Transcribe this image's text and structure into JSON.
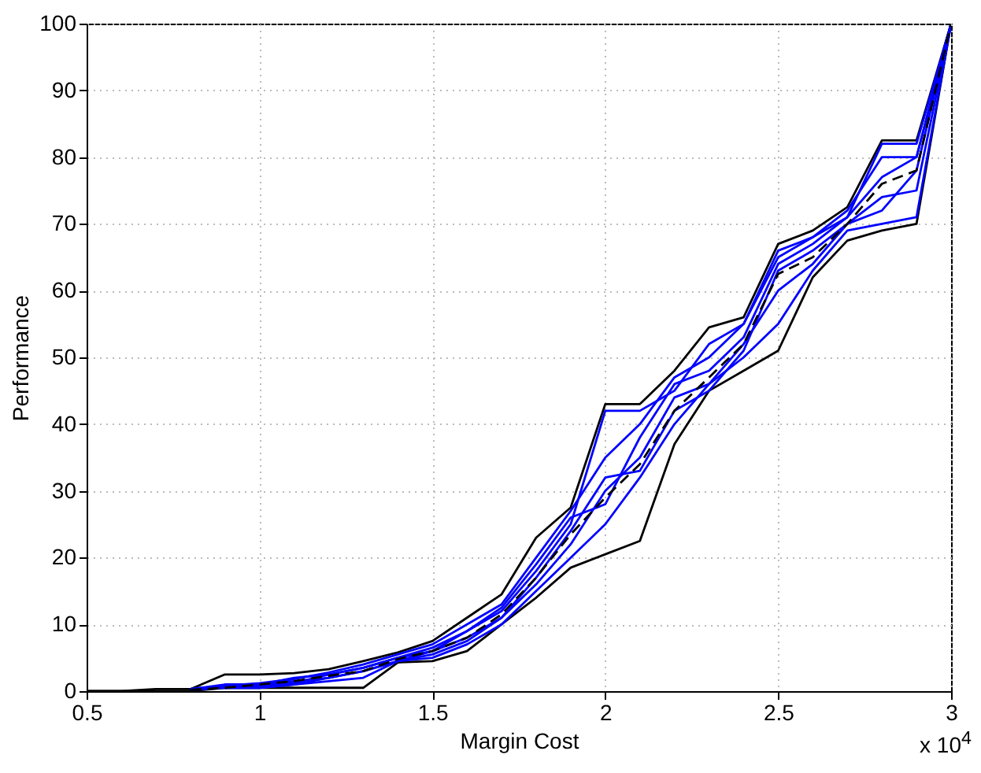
{
  "chart_data": {
    "type": "line",
    "xlabel": "Margin Cost",
    "ylabel": "Performance",
    "annotations": [
      "x 10$^{4}$"
    ],
    "x": [
      0.5,
      0.6,
      0.7,
      0.8,
      0.9,
      1.0,
      1.1,
      1.2,
      1.3,
      1.4,
      1.5,
      1.6,
      1.7,
      1.8,
      1.9,
      2.0,
      2.1,
      2.2,
      2.3,
      2.4,
      2.5,
      2.6,
      2.7,
      2.8,
      2.9,
      3.0
    ],
    "series": [
      {
        "color": "#000000",
        "values": [
          0,
          0,
          0.3,
          0.3,
          2.5,
          2.5,
          2.7,
          3.3,
          4.5,
          5.8,
          7.5,
          11,
          14.5,
          23,
          27.5,
          43,
          43,
          48,
          54.5,
          56,
          67,
          69,
          72.5,
          82.5,
          82.5,
          100
        ]
      },
      {
        "color": "#000000",
        "values": [
          0,
          0,
          0,
          0,
          0.5,
          0.5,
          0.5,
          0.5,
          0.5,
          4.3,
          4.5,
          6,
          10,
          14,
          18.5,
          20.5,
          22.5,
          37,
          45,
          48,
          51,
          62,
          67.5,
          69,
          70,
          100
        ]
      },
      {
        "color": "#0000ff",
        "values": [
          null,
          null,
          null,
          0.3,
          1,
          1,
          1.5,
          2,
          3,
          4.5,
          6,
          9,
          12,
          18,
          25,
          42,
          42,
          45,
          52,
          55,
          66,
          68,
          71,
          82,
          82,
          100
        ]
      },
      {
        "color": "#0000ff",
        "values": [
          null,
          null,
          null,
          null,
          0.5,
          0.8,
          1.2,
          2.5,
          3.5,
          5,
          6,
          8,
          11,
          16,
          22,
          30,
          35,
          44,
          46,
          52,
          60,
          64,
          70,
          74,
          75,
          100
        ]
      },
      {
        "color": "#0000ff",
        "values": [
          null,
          null,
          null,
          null,
          0.5,
          0.5,
          1,
          2,
          3,
          4.5,
          5.5,
          7.5,
          11,
          17,
          24,
          32,
          33,
          42,
          45,
          51,
          63,
          66,
          70,
          72,
          78,
          100
        ]
      },
      {
        "color": "#0000ff",
        "values": [
          null,
          null,
          null,
          0.2,
          0.5,
          1,
          2,
          2.5,
          3.5,
          5,
          6.5,
          9,
          12.5,
          19,
          26,
          28,
          38,
          46,
          48,
          53,
          64,
          67,
          71,
          77,
          80,
          100
        ]
      },
      {
        "color": "#0000ff",
        "values": [
          null,
          null,
          null,
          null,
          0.5,
          0.5,
          1,
          1.5,
          2,
          4.5,
          5,
          7,
          10,
          15,
          20,
          25,
          32,
          40,
          46,
          50,
          55,
          63,
          69,
          70,
          71,
          100
        ]
      },
      {
        "color": "#0000ff",
        "values": [
          null,
          null,
          null,
          0.3,
          0.8,
          1.2,
          1.8,
          2.8,
          4,
          5.5,
          7,
          10,
          13,
          20,
          27,
          35,
          40,
          47,
          50,
          55,
          65,
          68,
          72,
          80,
          80,
          100
        ]
      },
      {
        "color": "#000000",
        "line_style": "dashed",
        "values": [
          null,
          null,
          null,
          0.2,
          0.5,
          1,
          1.5,
          2.3,
          3,
          4.8,
          6,
          8,
          11.5,
          17,
          23.5,
          29,
          34,
          42,
          47,
          52,
          62.5,
          65,
          70,
          76,
          78,
          100
        ]
      }
    ],
    "xlim": [
      0.5,
      3
    ],
    "xticks": [
      0.5,
      1,
      1.5,
      2,
      2.5,
      3
    ],
    "ylim": [
      0,
      100
    ],
    "yticks": [
      0,
      10,
      20,
      30,
      40,
      50,
      60,
      70,
      80,
      90,
      100
    ],
    "grid": true,
    "legend": false,
    "marker": "none",
    "line_style": "solid"
  }
}
